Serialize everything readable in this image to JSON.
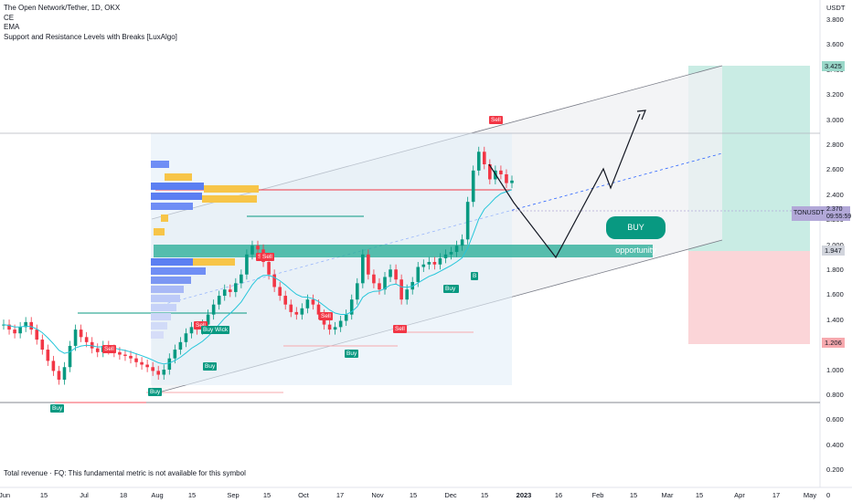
{
  "legend": {
    "title": "The Open Network/Tether, 1D, OKX",
    "line2": "CE",
    "line3": "EMA",
    "line4": "Support and Resistance Levels with Breaks [LuxAlgo]"
  },
  "footnote": "Total revenue · FQ: This fundamental metric is not available for this symbol",
  "price_axis": {
    "currency": "USDT",
    "ticks": [
      "3.800",
      "3.600",
      "3.400",
      "3.200",
      "3.000",
      "2.800",
      "2.600",
      "2.400",
      "2.200",
      "2.000",
      "1.800",
      "1.600",
      "1.400",
      "1.200",
      "1.000",
      "0.800",
      "0.600",
      "0.400",
      "0.200",
      "0"
    ],
    "target_tag": "3.425",
    "entry_tag": "1.947",
    "stop_tag": "1.206"
  },
  "symbol_tag": {
    "symbol": "TONUSDT",
    "price": "2.370",
    "countdown": "09:55:59"
  },
  "time_axis": [
    {
      "label": "Jun",
      "bold": false
    },
    {
      "label": "15",
      "bold": false
    },
    {
      "label": "Jul",
      "bold": false
    },
    {
      "label": "18",
      "bold": false
    },
    {
      "label": "Aug",
      "bold": false
    },
    {
      "label": "15",
      "bold": false
    },
    {
      "label": "Sep",
      "bold": false
    },
    {
      "label": "15",
      "bold": false
    },
    {
      "label": "Oct",
      "bold": false
    },
    {
      "label": "17",
      "bold": false
    },
    {
      "label": "Nov",
      "bold": false
    },
    {
      "label": "15",
      "bold": false
    },
    {
      "label": "Dec",
      "bold": false
    },
    {
      "label": "15",
      "bold": false
    },
    {
      "label": "2023",
      "bold": true
    },
    {
      "label": "16",
      "bold": false
    },
    {
      "label": "Feb",
      "bold": false
    },
    {
      "label": "15",
      "bold": false
    },
    {
      "label": "Mar",
      "bold": false
    },
    {
      "label": "15",
      "bold": false
    },
    {
      "label": "Apr",
      "bold": false
    },
    {
      "label": "17",
      "bold": false
    },
    {
      "label": "May",
      "bold": false
    }
  ],
  "annotation": {
    "buy_opportunity": "BUY opportunity"
  },
  "signals": [
    {
      "label": "Sell",
      "type": "sell"
    },
    {
      "label": "Buy",
      "type": "buy"
    },
    {
      "label": "Sell",
      "type": "sell"
    },
    {
      "label": "Buy",
      "type": "buy"
    },
    {
      "label": "Sell",
      "type": "sell"
    },
    {
      "label": "Buy Wick",
      "type": "buy"
    },
    {
      "label": "Buy",
      "type": "buy"
    },
    {
      "label": "Sell",
      "type": "sell"
    },
    {
      "label": "Sell",
      "type": "sell"
    },
    {
      "label": "Buy",
      "type": "buy"
    },
    {
      "label": "Sell",
      "type": "sell"
    },
    {
      "label": "Buy",
      "type": "buy"
    },
    {
      "label": "B",
      "type": "buy"
    },
    {
      "label": "Sell",
      "type": "sell"
    },
    {
      "label": "Buy",
      "type": "buy"
    }
  ],
  "colors": {
    "up": "#089981",
    "down": "#f23645",
    "accent": "#2962ff",
    "tag": "#b2a8d8"
  },
  "chart_data": {
    "type": "candlestick",
    "pair": "TONUSDT",
    "ylim": [
      0,
      3.9
    ],
    "price_closes": [
      1.22,
      1.18,
      1.15,
      1.2,
      1.24,
      1.18,
      1.1,
      1.02,
      0.93,
      0.85,
      0.78,
      0.88,
      1.05,
      1.18,
      1.12,
      1.08,
      1.03,
      1.0,
      1.05,
      1.02,
      1.0,
      0.98,
      0.97,
      0.95,
      0.92,
      0.9,
      0.88,
      0.85,
      0.82,
      0.86,
      0.95,
      1.02,
      1.08,
      1.15,
      1.2,
      1.18,
      1.22,
      1.3,
      1.38,
      1.45,
      1.5,
      1.48,
      1.55,
      1.62,
      1.78,
      1.85,
      1.82,
      1.72,
      1.62,
      1.52,
      1.45,
      1.38,
      1.32,
      1.3,
      1.35,
      1.42,
      1.38,
      1.3,
      1.22,
      1.18,
      1.2,
      1.25,
      1.3,
      1.42,
      1.55,
      1.78,
      1.62,
      1.55,
      1.5,
      1.6,
      1.66,
      1.58,
      1.42,
      1.5,
      1.56,
      1.68,
      1.7,
      1.72,
      1.7,
      1.75,
      1.78,
      1.8,
      1.85,
      1.9,
      2.2,
      2.45,
      2.6,
      2.5,
      2.38,
      2.45,
      2.42,
      2.35,
      2.37
    ]
  }
}
